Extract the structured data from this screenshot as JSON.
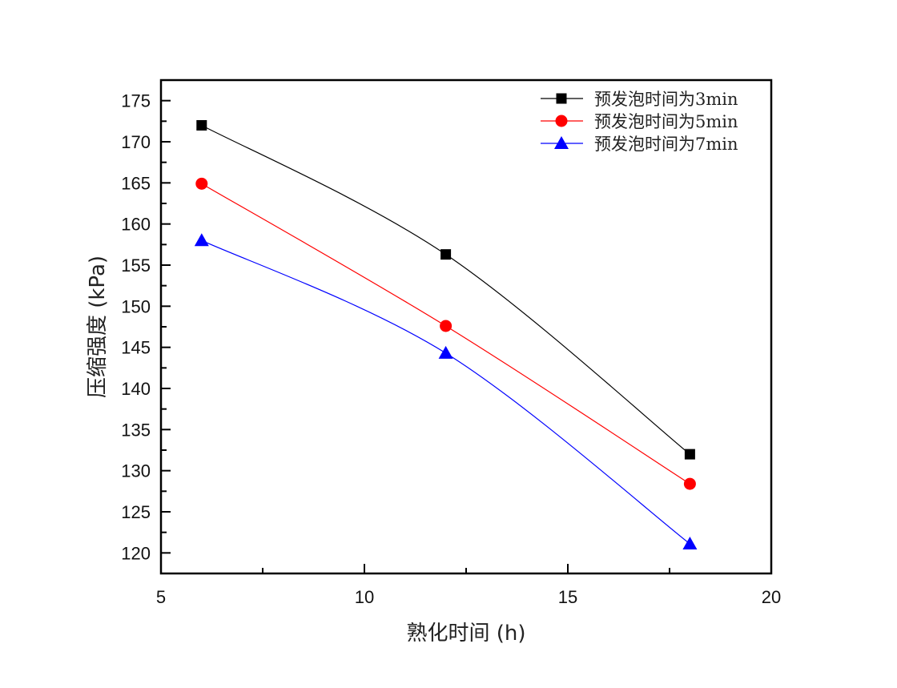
{
  "chart_data": {
    "type": "line",
    "title": "",
    "xlabel": "熟化时间 (h)",
    "ylabel": "压缩强度 (kPa)",
    "xlim": [
      5,
      20
    ],
    "ylim": [
      117.5,
      177.5
    ],
    "xticks": [
      5,
      10,
      15,
      20
    ],
    "xminor": [
      7.5,
      12.5,
      17.5
    ],
    "yticks": [
      120,
      125,
      130,
      135,
      140,
      145,
      150,
      155,
      160,
      165,
      170,
      175
    ],
    "yminor": [
      122.5,
      127.5,
      132.5,
      137.5,
      142.5,
      147.5,
      152.5,
      157.5,
      162.5,
      167.5,
      172.5,
      177.5
    ],
    "grid": false,
    "legend_position": "top-right",
    "x": [
      6,
      12,
      18
    ],
    "series": [
      {
        "name": "预发泡时间为3min",
        "values": [
          172.0,
          156.3,
          132.0
        ],
        "color": "#000000",
        "marker": "square"
      },
      {
        "name": "预发泡时间为5min",
        "values": [
          164.9,
          147.6,
          128.4
        ],
        "color": "#ff0000",
        "marker": "circle"
      },
      {
        "name": "预发泡时间为7min",
        "values": [
          158.0,
          144.3,
          121.1
        ],
        "color": "#0000ff",
        "marker": "triangle"
      }
    ]
  }
}
